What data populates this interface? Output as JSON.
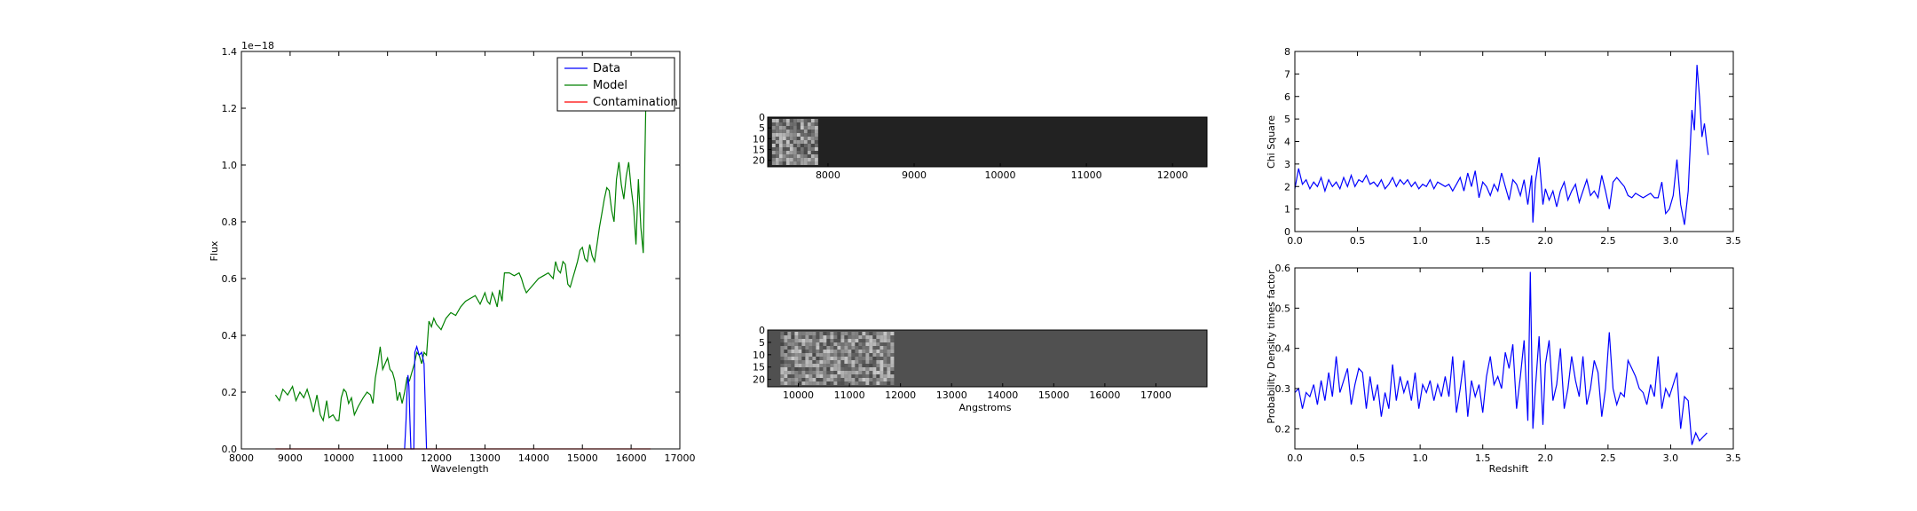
{
  "chart_data": [
    {
      "type": "line",
      "panel": "spectrum",
      "title": "",
      "xlabel": "Wavelength",
      "ylabel": "Flux",
      "offset_text": "1e−18",
      "xlim": [
        8000,
        17000
      ],
      "ylim": [
        0.0,
        1.4
      ],
      "xticks": [
        8000,
        9000,
        10000,
        11000,
        12000,
        13000,
        14000,
        15000,
        16000,
        17000
      ],
      "yticks": [
        0.0,
        0.2,
        0.4,
        0.6,
        0.8,
        1.0,
        1.2,
        1.4
      ],
      "grid": false,
      "legend": {
        "placement": "top-right",
        "entries": [
          "Data",
          "Model",
          "Contamination"
        ]
      },
      "series": [
        {
          "name": "Model",
          "color": "#008000",
          "x": [
            8700,
            8780,
            8850,
            8950,
            9050,
            9120,
            9200,
            9280,
            9350,
            9420,
            9480,
            9550,
            9620,
            9680,
            9750,
            9800,
            9880,
            9950,
            10000,
            10050,
            10100,
            10150,
            10200,
            10260,
            10320,
            10400,
            10500,
            10580,
            10650,
            10700,
            10750,
            10800,
            10850,
            10900,
            10950,
            11000,
            11050,
            11100,
            11150,
            11200,
            11250,
            11300,
            11350,
            11400,
            11450,
            11500,
            11550,
            11600,
            11650,
            11700,
            11750,
            11800,
            11850,
            11900,
            11950,
            12000,
            12100,
            12200,
            12300,
            12400,
            12500,
            12600,
            12700,
            12800,
            12900,
            13000,
            13050,
            13100,
            13150,
            13200,
            13250,
            13300,
            13350,
            13400,
            13500,
            13600,
            13700,
            13750,
            13800,
            13850,
            13900,
            14000,
            14100,
            14200,
            14300,
            14400,
            14450,
            14500,
            14550,
            14600,
            14650,
            14700,
            14750,
            14800,
            14850,
            14900,
            14950,
            15000,
            15050,
            15100,
            15150,
            15200,
            15250,
            15300,
            15350,
            15400,
            15450,
            15500,
            15550,
            15600,
            15650,
            15700,
            15750,
            15800,
            15850,
            15900,
            15950,
            16000,
            16050,
            16100,
            16150,
            16200,
            16250,
            16300,
            16350
          ],
          "y": [
            0.19,
            0.17,
            0.21,
            0.19,
            0.22,
            0.17,
            0.2,
            0.18,
            0.21,
            0.17,
            0.13,
            0.19,
            0.12,
            0.1,
            0.17,
            0.11,
            0.12,
            0.1,
            0.1,
            0.18,
            0.21,
            0.2,
            0.16,
            0.18,
            0.12,
            0.15,
            0.18,
            0.2,
            0.19,
            0.16,
            0.25,
            0.3,
            0.36,
            0.28,
            0.3,
            0.32,
            0.28,
            0.27,
            0.24,
            0.17,
            0.2,
            0.16,
            0.2,
            0.25,
            0.24,
            0.27,
            0.3,
            0.34,
            0.33,
            0.3,
            0.34,
            0.33,
            0.45,
            0.43,
            0.46,
            0.44,
            0.42,
            0.46,
            0.48,
            0.47,
            0.5,
            0.52,
            0.53,
            0.54,
            0.51,
            0.55,
            0.52,
            0.51,
            0.55,
            0.53,
            0.5,
            0.56,
            0.52,
            0.62,
            0.62,
            0.61,
            0.62,
            0.6,
            0.57,
            0.55,
            0.56,
            0.58,
            0.6,
            0.61,
            0.62,
            0.6,
            0.66,
            0.63,
            0.62,
            0.66,
            0.65,
            0.58,
            0.57,
            0.6,
            0.63,
            0.66,
            0.7,
            0.71,
            0.67,
            0.66,
            0.72,
            0.68,
            0.66,
            0.72,
            0.78,
            0.83,
            0.88,
            0.92,
            0.91,
            0.84,
            0.8,
            0.95,
            1.01,
            0.93,
            0.88,
            0.96,
            1.01,
            0.92,
            0.85,
            0.72,
            0.95,
            0.78,
            0.69,
            1.2,
            1.3
          ]
        },
        {
          "name": "Data",
          "color": "#0000ff",
          "x": [
            11350,
            11380,
            11400,
            11420,
            11440,
            11460,
            11480,
            11500,
            11520,
            11540,
            11560,
            11600,
            11650,
            11700,
            11750,
            11800
          ],
          "y": [
            0.0,
            0.1,
            0.2,
            0.26,
            0.22,
            0.1,
            0.0,
            0.0,
            0.0,
            0.0,
            0.34,
            0.36,
            0.33,
            0.34,
            0.3,
            0.0
          ]
        },
        {
          "name": "Contamination",
          "color": "#ff0000",
          "x": [
            8700,
            16400
          ],
          "y": [
            0.0,
            0.0
          ]
        }
      ]
    },
    {
      "type": "heatmap",
      "panel": "2d-spectrum-top",
      "xticks": [
        8000,
        9000,
        10000,
        11000,
        12000
      ],
      "yticks": [
        0,
        5,
        10,
        15,
        20
      ],
      "xlim": [
        7300,
        12400
      ],
      "ylim": [
        0,
        23
      ],
      "data_x_range": [
        7350,
        7850
      ],
      "background_color": "#222222"
    },
    {
      "type": "heatmap",
      "panel": "2d-spectrum-bottom",
      "xlabel": "Angstroms",
      "xticks": [
        10000,
        11000,
        12000,
        13000,
        14000,
        15000,
        16000,
        17000
      ],
      "yticks": [
        0,
        5,
        10,
        15,
        20
      ],
      "xlim": [
        9400,
        18000
      ],
      "ylim": [
        0,
        23
      ],
      "data_x_range": [
        9650,
        11850
      ],
      "background_color": "#505050"
    },
    {
      "type": "line",
      "panel": "chi-square",
      "ylabel": "Chi Square",
      "xlim": [
        0.0,
        3.5
      ],
      "ylim": [
        0,
        8
      ],
      "xticks": [
        0.0,
        0.5,
        1.0,
        1.5,
        2.0,
        2.5,
        3.0,
        3.5
      ],
      "yticks": [
        0,
        1,
        2,
        3,
        4,
        5,
        6,
        7,
        8
      ],
      "grid": false,
      "series": [
        {
          "color": "#0000ff",
          "x": [
            0.0,
            0.03,
            0.06,
            0.09,
            0.12,
            0.15,
            0.18,
            0.21,
            0.24,
            0.27,
            0.3,
            0.33,
            0.36,
            0.39,
            0.42,
            0.45,
            0.48,
            0.51,
            0.54,
            0.57,
            0.6,
            0.63,
            0.66,
            0.69,
            0.72,
            0.75,
            0.78,
            0.81,
            0.84,
            0.87,
            0.9,
            0.93,
            0.96,
            0.99,
            1.02,
            1.05,
            1.08,
            1.11,
            1.14,
            1.17,
            1.2,
            1.23,
            1.26,
            1.29,
            1.32,
            1.35,
            1.38,
            1.41,
            1.44,
            1.47,
            1.5,
            1.53,
            1.56,
            1.59,
            1.62,
            1.65,
            1.68,
            1.71,
            1.74,
            1.77,
            1.8,
            1.83,
            1.86,
            1.89,
            1.9,
            1.92,
            1.95,
            1.98,
            2.0,
            2.03,
            2.06,
            2.09,
            2.12,
            2.15,
            2.18,
            2.21,
            2.24,
            2.27,
            2.3,
            2.33,
            2.36,
            2.39,
            2.42,
            2.45,
            2.48,
            2.51,
            2.54,
            2.57,
            2.6,
            2.63,
            2.66,
            2.69,
            2.72,
            2.75,
            2.78,
            2.81,
            2.84,
            2.87,
            2.9,
            2.93,
            2.96,
            2.99,
            3.02,
            3.05,
            3.08,
            3.11,
            3.14,
            3.17,
            3.19,
            3.21,
            3.23,
            3.25,
            3.27,
            3.29,
            3.3
          ],
          "y": [
            1.9,
            2.8,
            2.1,
            2.3,
            1.9,
            2.2,
            2.0,
            2.4,
            1.8,
            2.3,
            2.0,
            2.2,
            1.9,
            2.4,
            2.0,
            2.5,
            2.0,
            2.3,
            2.2,
            2.5,
            2.1,
            2.2,
            2.0,
            2.3,
            1.9,
            2.1,
            2.4,
            2.0,
            2.3,
            2.1,
            2.3,
            2.0,
            2.2,
            1.9,
            2.1,
            2.0,
            2.3,
            1.9,
            2.2,
            2.1,
            2.0,
            2.1,
            1.8,
            2.1,
            2.4,
            1.8,
            2.6,
            2.0,
            2.7,
            1.5,
            2.2,
            2.0,
            1.6,
            2.1,
            1.8,
            2.6,
            2.0,
            1.4,
            2.3,
            2.1,
            1.6,
            2.3,
            1.2,
            2.5,
            0.4,
            2.2,
            3.3,
            1.2,
            1.9,
            1.4,
            1.8,
            1.1,
            1.8,
            2.2,
            1.4,
            1.8,
            2.1,
            1.3,
            1.8,
            2.3,
            1.6,
            1.8,
            1.5,
            2.5,
            1.8,
            1.0,
            2.2,
            2.4,
            2.2,
            2.0,
            1.6,
            1.5,
            1.7,
            1.6,
            1.5,
            1.6,
            1.7,
            1.5,
            1.5,
            2.2,
            0.8,
            1.0,
            1.6,
            3.2,
            1.2,
            0.3,
            1.8,
            5.4,
            4.5,
            7.4,
            6.0,
            4.2,
            4.8,
            3.8,
            3.4
          ]
        }
      ]
    },
    {
      "type": "line",
      "panel": "probability-density",
      "xlabel": "Redshift",
      "ylabel": "Probability Density times factor",
      "xlim": [
        0.0,
        3.5
      ],
      "ylim": [
        0.15,
        0.6
      ],
      "xticks": [
        0.0,
        0.5,
        1.0,
        1.5,
        2.0,
        2.5,
        3.0,
        3.5
      ],
      "yticks": [
        0.2,
        0.3,
        0.4,
        0.5,
        0.6
      ],
      "grid": false,
      "series": [
        {
          "color": "#0000ff",
          "x": [
            0.0,
            0.03,
            0.06,
            0.09,
            0.12,
            0.15,
            0.18,
            0.21,
            0.24,
            0.27,
            0.3,
            0.33,
            0.36,
            0.39,
            0.42,
            0.45,
            0.48,
            0.51,
            0.54,
            0.57,
            0.6,
            0.63,
            0.66,
            0.69,
            0.72,
            0.75,
            0.78,
            0.81,
            0.84,
            0.87,
            0.9,
            0.93,
            0.96,
            0.99,
            1.02,
            1.05,
            1.08,
            1.11,
            1.14,
            1.17,
            1.2,
            1.23,
            1.26,
            1.29,
            1.32,
            1.35,
            1.38,
            1.41,
            1.44,
            1.47,
            1.5,
            1.53,
            1.56,
            1.59,
            1.62,
            1.65,
            1.68,
            1.71,
            1.74,
            1.77,
            1.8,
            1.83,
            1.86,
            1.88,
            1.9,
            1.92,
            1.95,
            1.98,
            2.0,
            2.03,
            2.06,
            2.09,
            2.12,
            2.15,
            2.18,
            2.21,
            2.24,
            2.27,
            2.3,
            2.33,
            2.36,
            2.39,
            2.42,
            2.45,
            2.48,
            2.51,
            2.54,
            2.57,
            2.6,
            2.63,
            2.66,
            2.69,
            2.72,
            2.75,
            2.78,
            2.81,
            2.84,
            2.87,
            2.9,
            2.93,
            2.96,
            2.99,
            3.02,
            3.05,
            3.08,
            3.11,
            3.14,
            3.17,
            3.2,
            3.23,
            3.26,
            3.29
          ],
          "y": [
            0.29,
            0.3,
            0.25,
            0.29,
            0.28,
            0.31,
            0.26,
            0.32,
            0.27,
            0.34,
            0.28,
            0.38,
            0.29,
            0.32,
            0.35,
            0.26,
            0.31,
            0.35,
            0.34,
            0.25,
            0.33,
            0.27,
            0.31,
            0.23,
            0.29,
            0.25,
            0.36,
            0.27,
            0.33,
            0.29,
            0.32,
            0.27,
            0.34,
            0.25,
            0.31,
            0.29,
            0.32,
            0.27,
            0.31,
            0.28,
            0.33,
            0.28,
            0.38,
            0.24,
            0.3,
            0.37,
            0.23,
            0.32,
            0.28,
            0.31,
            0.24,
            0.33,
            0.38,
            0.31,
            0.33,
            0.3,
            0.39,
            0.35,
            0.41,
            0.25,
            0.33,
            0.42,
            0.22,
            0.59,
            0.2,
            0.3,
            0.43,
            0.21,
            0.36,
            0.42,
            0.27,
            0.31,
            0.4,
            0.25,
            0.3,
            0.38,
            0.32,
            0.28,
            0.38,
            0.26,
            0.3,
            0.37,
            0.34,
            0.23,
            0.3,
            0.44,
            0.3,
            0.26,
            0.29,
            0.28,
            0.37,
            0.35,
            0.33,
            0.3,
            0.29,
            0.26,
            0.31,
            0.28,
            0.38,
            0.25,
            0.3,
            0.28,
            0.31,
            0.34,
            0.2,
            0.28,
            0.27,
            0.16,
            0.19,
            0.17,
            0.18,
            0.19
          ]
        }
      ]
    }
  ]
}
